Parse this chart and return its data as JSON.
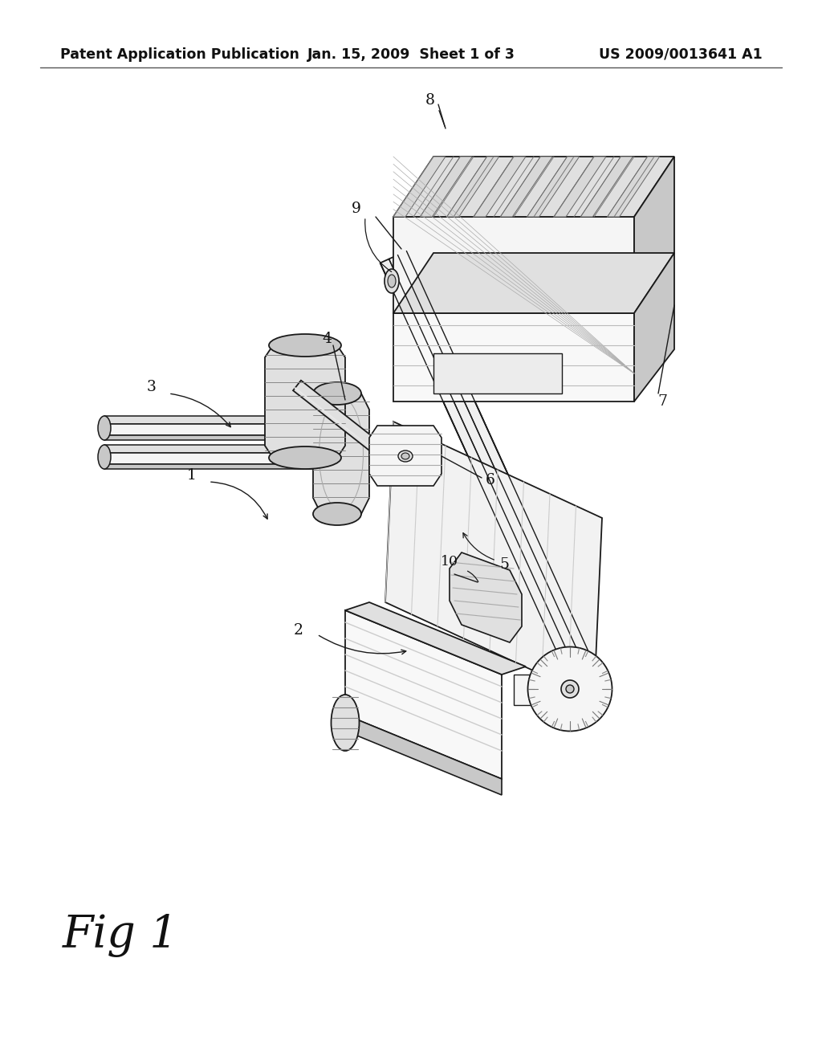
{
  "background_color": "#ffffff",
  "header_left": "Patent Application Publication",
  "header_center": "Jan. 15, 2009  Sheet 1 of 3",
  "header_right": "US 2009/0013641 A1",
  "header_fontsize": 12.5,
  "figure_label": "Fig 1",
  "figure_label_fontsize": 40,
  "line_color": "#1a1a1a",
  "hatch_color": "#444444",
  "face_light": "#f5f5f5",
  "face_mid": "#e0e0e0",
  "face_dark": "#c8c8c8",
  "face_darker": "#b0b0b0"
}
